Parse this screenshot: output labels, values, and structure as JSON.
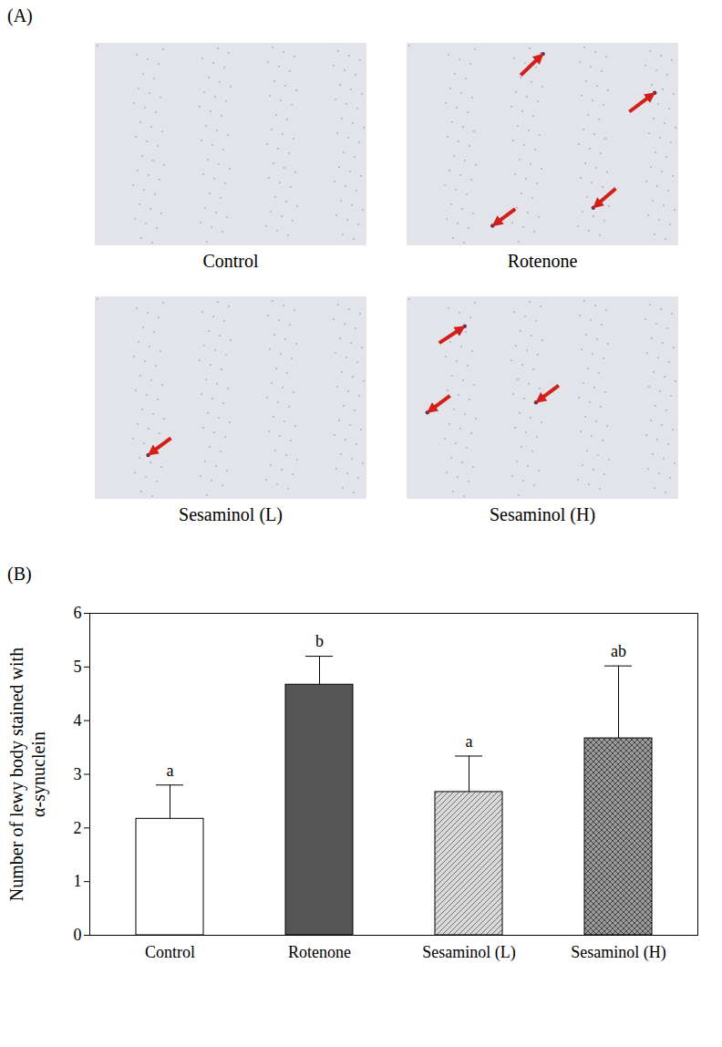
{
  "panel_a": {
    "label": "(A)",
    "images": [
      {
        "caption": "Control"
      },
      {
        "caption": "Rotenone"
      },
      {
        "caption": "Sesaminol (L)"
      },
      {
        "caption": "Sesaminol (H)"
      }
    ]
  },
  "chart_data": {
    "type": "bar",
    "panel_label": "(B)",
    "categories": [
      "Control",
      "Rotenone",
      "Sesaminol (L)",
      "Sesaminol (H)"
    ],
    "values": [
      2.17,
      4.67,
      2.67,
      3.67
    ],
    "errors": [
      0.63,
      0.53,
      0.67,
      1.35
    ],
    "annotations": [
      "a",
      "b",
      "a",
      "ab"
    ],
    "ylabel": "Number of lewy body stained with α-synuclein",
    "ylim": [
      0,
      6
    ],
    "yticks": [
      0,
      1,
      2,
      3,
      4,
      5,
      6
    ],
    "colors": [
      "#ffffff",
      "#555555",
      "#d9d9d9",
      "#9a9a9a"
    ]
  }
}
